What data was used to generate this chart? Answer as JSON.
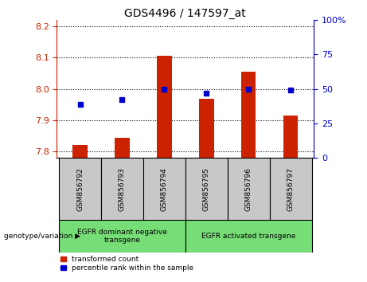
{
  "title": "GDS4496 / 147597_at",
  "categories": [
    "GSM856792",
    "GSM856793",
    "GSM856794",
    "GSM856795",
    "GSM856796",
    "GSM856797"
  ],
  "red_values": [
    7.822,
    7.845,
    8.105,
    7.968,
    8.055,
    7.915
  ],
  "blue_values": [
    39,
    42,
    50,
    47,
    50,
    49
  ],
  "ylim_left": [
    7.78,
    8.22
  ],
  "ylim_right": [
    0,
    100
  ],
  "yticks_left": [
    7.8,
    7.9,
    8.0,
    8.1,
    8.2
  ],
  "yticks_right": [
    0,
    25,
    50,
    75,
    100
  ],
  "red_color": "#cc2200",
  "blue_color": "#0000cc",
  "bar_bottom": 7.78,
  "group1_label": "EGFR dominant negative\ntransgene",
  "group2_label": "EGFR activated transgene",
  "group1_indices": [
    0,
    1,
    2
  ],
  "group2_indices": [
    3,
    4,
    5
  ],
  "legend_red": "transformed count",
  "legend_blue": "percentile rank within the sample",
  "genotype_label": "genotype/variation",
  "group_box_color": "#77dd77",
  "tick_box_color": "#c8c8c8",
  "title_fontsize": 10,
  "tick_fontsize": 8,
  "bar_width": 0.35
}
